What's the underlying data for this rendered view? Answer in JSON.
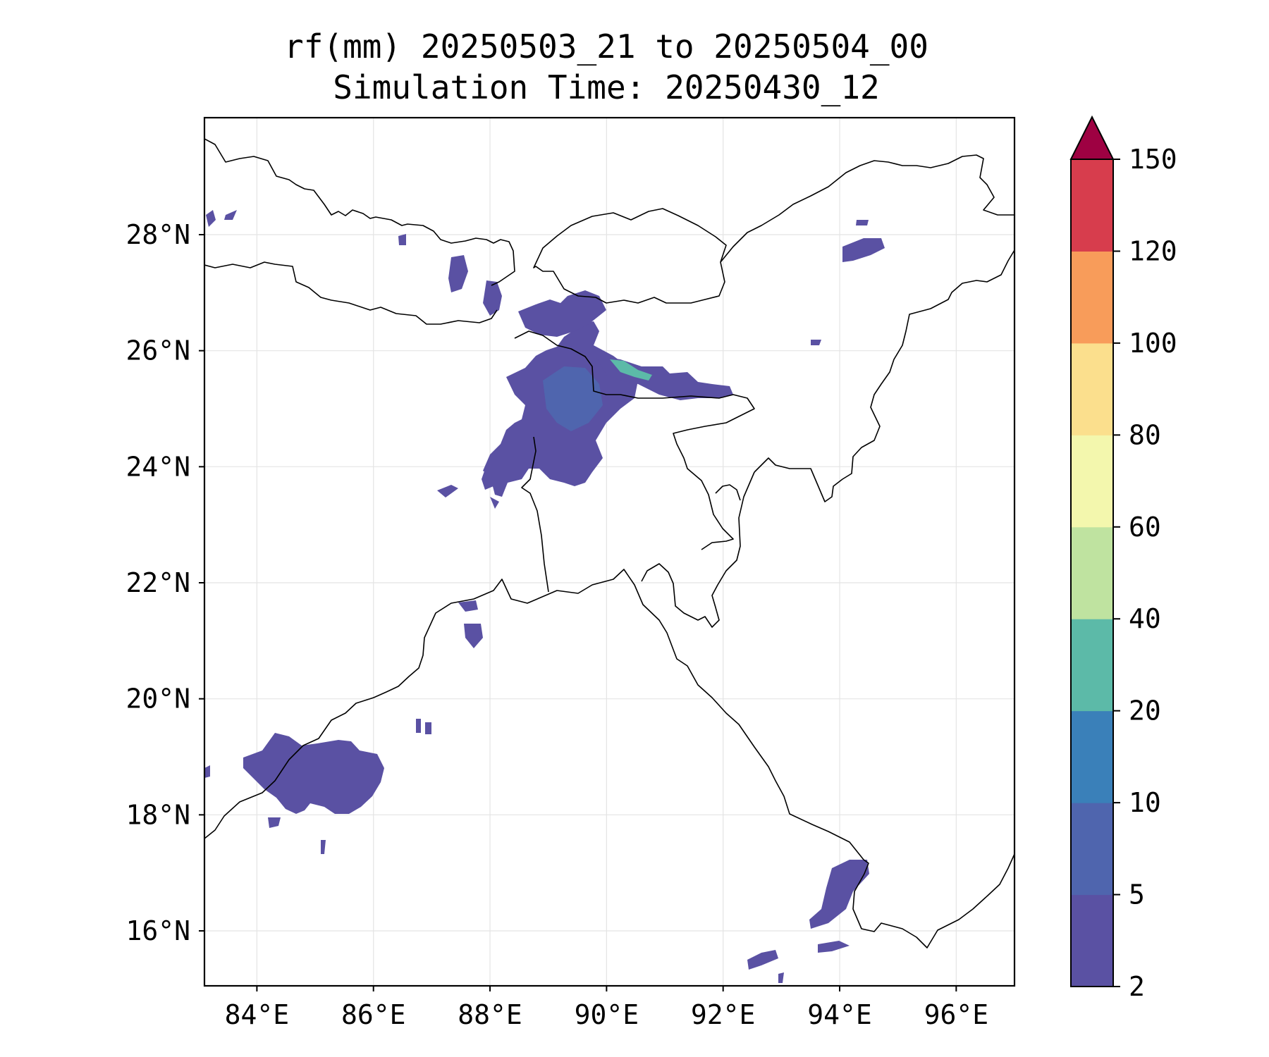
{
  "title_line1": "rf(mm) 20250503_21 to 20250504_00",
  "title_line2": "Simulation Time: 20250430_12",
  "map": {
    "lon_range": [
      83.1,
      97.0
    ],
    "lat_range": [
      15.0,
      30.0
    ],
    "x_ticks": [
      "84°E",
      "86°E",
      "88°E",
      "90°E",
      "92°E",
      "94°E",
      "96°E"
    ],
    "y_ticks": [
      "16°N",
      "18°N",
      "20°N",
      "22°N",
      "24°N",
      "26°N",
      "28°N"
    ],
    "grid": true,
    "features": [
      "coastline",
      "country-borders"
    ]
  },
  "colorbar": {
    "extend": "max",
    "levels": [
      "2",
      "5",
      "10",
      "20",
      "40",
      "60",
      "80",
      "100",
      "120",
      "150"
    ],
    "colors": [
      "#5a51a3",
      "#4f65ae",
      "#3a80b9",
      "#5cbaa8",
      "#bfe3a0",
      "#f3f7ad",
      "#fbdf8d",
      "#f89c5a",
      "#d73d4d",
      "#9e0142"
    ]
  }
}
